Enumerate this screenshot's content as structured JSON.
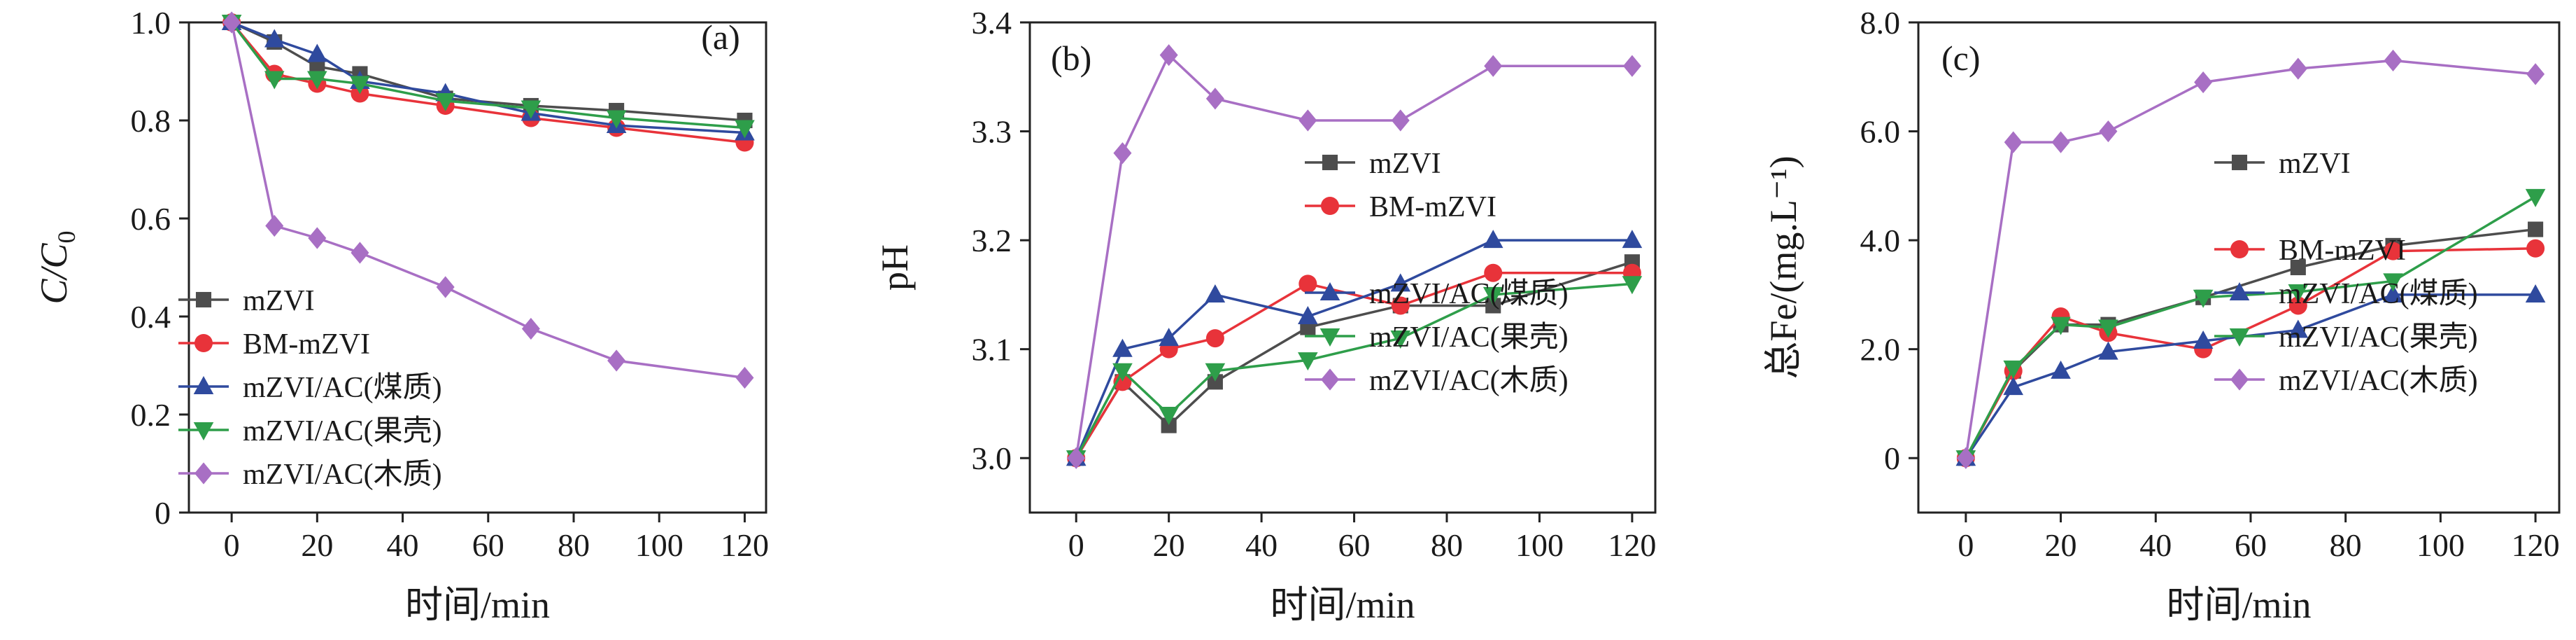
{
  "chart_data": [
    {
      "type": "line",
      "panel_label": "(a)",
      "x": [
        0,
        10,
        20,
        30,
        50,
        70,
        90,
        120
      ],
      "xlabel": "时间/min",
      "ylabel": "C/C0",
      "ylabel_main": "C/C",
      "ylabel_sub": "0",
      "xlim": [
        -10,
        125
      ],
      "ylim": [
        0,
        1.0
      ],
      "xticks": [
        0,
        20,
        40,
        60,
        80,
        100,
        120
      ],
      "yticks": [
        0,
        0.2,
        0.4,
        0.6,
        0.8,
        1.0
      ],
      "ytick_labels": [
        "0",
        "0.2",
        "0.4",
        "0.6",
        "0.8",
        "1.0"
      ],
      "grid": false,
      "legend_position": "lower-left",
      "series": [
        {
          "name": "mZVI",
          "color": "#4d4d4d",
          "marker": "square",
          "values": [
            1.0,
            0.96,
            0.91,
            0.895,
            0.845,
            0.83,
            0.82,
            0.8
          ]
        },
        {
          "name": "BM-mZVI",
          "color": "#e8333a",
          "marker": "circle",
          "values": [
            1.0,
            0.895,
            0.875,
            0.855,
            0.83,
            0.805,
            0.785,
            0.755
          ]
        },
        {
          "name": "mZVI/AC(煤质)",
          "color": "#2f4a9e",
          "marker": "triangle-up",
          "values": [
            1.0,
            0.965,
            0.935,
            0.88,
            0.855,
            0.815,
            0.79,
            0.775
          ]
        },
        {
          "name": "mZVI/AC(果壳)",
          "color": "#2e9e4a",
          "marker": "triangle-down",
          "values": [
            1.0,
            0.885,
            0.885,
            0.875,
            0.84,
            0.825,
            0.805,
            0.785
          ]
        },
        {
          "name": "mZVI/AC(木质)",
          "color": "#a86fc4",
          "marker": "diamond",
          "values": [
            1.0,
            0.585,
            0.56,
            0.53,
            0.46,
            0.375,
            0.31,
            0.275
          ]
        }
      ]
    },
    {
      "type": "line",
      "panel_label": "(b)",
      "x": [
        0,
        10,
        20,
        30,
        50,
        70,
        90,
        120
      ],
      "xlabel": "时间/min",
      "ylabel": "pH",
      "xlim": [
        -10,
        125
      ],
      "ylim": [
        2.95,
        3.4
      ],
      "xticks": [
        0,
        20,
        40,
        60,
        80,
        100,
        120
      ],
      "yticks": [
        3.0,
        3.1,
        3.2,
        3.3,
        3.4
      ],
      "ytick_labels": [
        "3.0",
        "3.1",
        "3.2",
        "3.3",
        "3.4"
      ],
      "grid": false,
      "legend_position": "center-right",
      "series": [
        {
          "name": "mZVI",
          "color": "#4d4d4d",
          "marker": "square",
          "values": [
            3.0,
            3.07,
            3.03,
            3.07,
            3.12,
            3.14,
            3.14,
            3.18
          ]
        },
        {
          "name": "BM-mZVI",
          "color": "#e8333a",
          "marker": "circle",
          "values": [
            3.0,
            3.07,
            3.1,
            3.11,
            3.16,
            3.14,
            3.17,
            3.17
          ]
        },
        {
          "name": "mZVI/AC(煤质)",
          "color": "#2f4a9e",
          "marker": "triangle-up",
          "values": [
            3.0,
            3.1,
            3.11,
            3.15,
            3.13,
            3.16,
            3.2,
            3.2
          ]
        },
        {
          "name": "mZVI/AC(果壳)",
          "color": "#2e9e4a",
          "marker": "triangle-down",
          "values": [
            3.0,
            3.08,
            3.04,
            3.08,
            3.09,
            3.11,
            3.15,
            3.16
          ]
        },
        {
          "name": "mZVI/AC(木质)",
          "color": "#a86fc4",
          "marker": "diamond",
          "values": [
            3.0,
            3.28,
            3.37,
            3.33,
            3.31,
            3.31,
            3.36,
            3.36
          ]
        }
      ]
    },
    {
      "type": "line",
      "panel_label": "(c)",
      "x": [
        0,
        10,
        20,
        30,
        50,
        70,
        90,
        120
      ],
      "xlabel": "时间/min",
      "ylabel": "总Fe/(mg.L⁻¹)",
      "xlim": [
        -10,
        125
      ],
      "ylim": [
        -1.0,
        8.0
      ],
      "xticks": [
        0,
        20,
        40,
        60,
        80,
        100,
        120
      ],
      "yticks": [
        0,
        2.0,
        4.0,
        6.0,
        8.0
      ],
      "ytick_labels": [
        "0",
        "2.0",
        "4.0",
        "6.0",
        "8.0"
      ],
      "grid": false,
      "legend_position": "center-right",
      "series": [
        {
          "name": "mZVI",
          "color": "#4d4d4d",
          "marker": "square",
          "values": [
            0,
            1.6,
            2.45,
            2.45,
            2.95,
            3.5,
            3.9,
            4.2
          ]
        },
        {
          "name": "BM-mZVI",
          "color": "#e8333a",
          "marker": "circle",
          "values": [
            0,
            1.6,
            2.6,
            2.3,
            2.0,
            2.8,
            3.8,
            3.85
          ]
        },
        {
          "name": "mZVI/AC(煤质)",
          "color": "#2f4a9e",
          "marker": "triangle-up",
          "values": [
            0,
            1.3,
            1.6,
            1.95,
            2.15,
            2.35,
            3.0,
            3.0
          ]
        },
        {
          "name": "mZVI/AC(果壳)",
          "color": "#2e9e4a",
          "marker": "triangle-down",
          "values": [
            0,
            1.65,
            2.45,
            2.4,
            2.95,
            3.05,
            3.25,
            4.8
          ]
        },
        {
          "name": "mZVI/AC(木质)",
          "color": "#a86fc4",
          "marker": "diamond",
          "values": [
            0,
            5.8,
            5.8,
            6.0,
            6.9,
            7.15,
            7.3,
            7.05
          ]
        }
      ]
    }
  ]
}
